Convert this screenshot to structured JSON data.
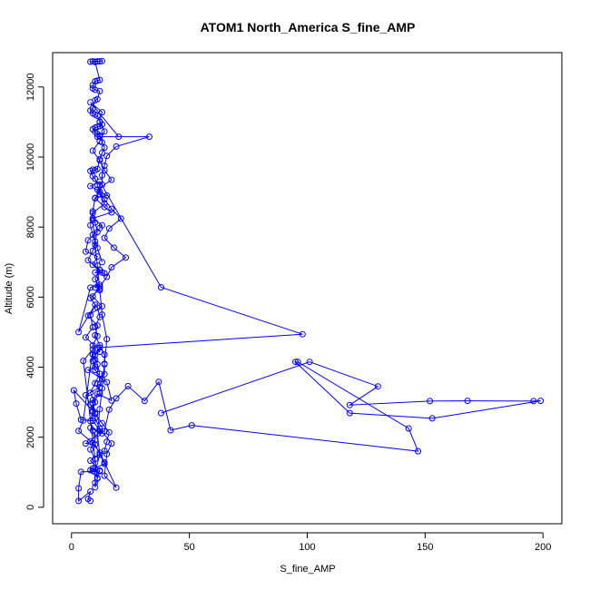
{
  "chart_data": {
    "type": "line",
    "title": "ATOM1 North_America S_fine_AMP",
    "xlabel": "S_fine_AMP",
    "ylabel": "Altitude (m)",
    "xlim": [
      -8,
      208
    ],
    "ylim": [
      -470,
      12980
    ],
    "x_ticks": [
      0,
      50,
      100,
      150,
      200
    ],
    "y_ticks": [
      0,
      2000,
      4000,
      6000,
      8000,
      10000,
      12000
    ],
    "x_tick_labels": [
      "0",
      "50",
      "100",
      "150",
      "200"
    ],
    "y_tick_labels": [
      "0",
      "2000",
      "4000",
      "6000",
      "8000",
      "10000",
      "12000"
    ],
    "series_color": "#0000ff",
    "marker": "open-circle",
    "grid": false,
    "series": [
      {
        "x": [
          8,
          7,
          8,
          3,
          3,
          4,
          12,
          9,
          8,
          14,
          10,
          6,
          8,
          12,
          8,
          13,
          9,
          4,
          2,
          1,
          9,
          9,
          11,
          17,
          15,
          7,
          10,
          10,
          9,
          12,
          11,
          6,
          9,
          8,
          10,
          3,
          8,
          12,
          10,
          12,
          10,
          14,
          13,
          9,
          11,
          6,
          7,
          12,
          13,
          9,
          17,
          14,
          10,
          15,
          8,
          12,
          38,
          98,
          12,
          9,
          10,
          13,
          12,
          6,
          8,
          10,
          13,
          16,
          15,
          14,
          8,
          12,
          11,
          5,
          9,
          5,
          3,
          9,
          12,
          14,
          19,
          14,
          15,
          17,
          12,
          10,
          10,
          9,
          12,
          11,
          14,
          14,
          14,
          12,
          10,
          11,
          7,
          13,
          9,
          12,
          15,
          17,
          23,
          18,
          14,
          16,
          21,
          17,
          14,
          11,
          17,
          14,
          12,
          9,
          12,
          14,
          12,
          13,
          8,
          20,
          11,
          12,
          33,
          19,
          15,
          14,
          13,
          13,
          12,
          14,
          9,
          10,
          11,
          10,
          9,
          7,
          12,
          10,
          12,
          8,
          11,
          12,
          10,
          11,
          9,
          10,
          11,
          12,
          10,
          8,
          10,
          9,
          8,
          9,
          10,
          8,
          10,
          9,
          11,
          10,
          10,
          10,
          12,
          11,
          12,
          13,
          14,
          15,
          13,
          12,
          11,
          10,
          9
        ],
        "y": [
          180,
          240,
          450,
          180,
          540,
          1010,
          1030,
          1040,
          1060,
          1240,
          1790,
          1820,
          1880,
          2170,
          2270,
          2110,
          2470,
          2500,
          2960,
          3340,
          2750,
          3060,
          3240,
          3050,
          3570,
          3920,
          4010,
          4210,
          4360,
          4440,
          4540,
          4850,
          5140,
          5490,
          5780,
          5000,
          6270,
          6350,
          6270,
          6770,
          6700,
          6680,
          6700,
          6920,
          7160,
          7300,
          7620,
          7970,
          8050,
          8250,
          8420,
          8570,
          8830,
          8900,
          9170,
          9300,
          6280,
          4940,
          4560,
          4180,
          3920,
          3660,
          3430,
          3200,
          2930,
          2660,
          2400,
          2140,
          1870,
          1610,
          1330,
          1050,
          820,
          4180,
          4510,
          2480,
          2180,
          1830,
          1560,
          1280,
          560,
          900,
          1520,
          1820,
          2240,
          2550,
          2700,
          2980,
          3250,
          3530,
          3800,
          4080,
          4360,
          4630,
          4910,
          5190,
          5470,
          5740,
          6020,
          6300,
          6580,
          6850,
          7130,
          7410,
          7690,
          7960,
          8240,
          8520,
          8790,
          9070,
          9350,
          9620,
          9900,
          10180,
          10450,
          10730,
          11010,
          11280,
          11560,
          10580,
          10580,
          10580,
          10580,
          10300,
          10030,
          9750,
          9480,
          9210,
          8940,
          8670,
          8400,
          8130,
          7860,
          7590,
          7320,
          7050,
          6780,
          6510,
          6240,
          5970,
          5700,
          5430,
          5160,
          4890,
          4620,
          4350,
          4080,
          3810,
          3540,
          3270,
          3000,
          2730,
          2460,
          2190,
          1920,
          1650,
          1380,
          1110,
          840,
          570,
          700,
          1000,
          1500,
          2100,
          2800,
          3400,
          4100,
          4800,
          5500,
          6200,
          6900,
          7500,
          8200
        ]
      },
      {
        "x": [
          38,
          101,
          130,
          118,
          152,
          168,
          196,
          199,
          153,
          118,
          95,
          96,
          143,
          147,
          51,
          42,
          37,
          31,
          24,
          19,
          16,
          14
        ],
        "y": [
          2690,
          4150,
          3450,
          2920,
          3030,
          3040,
          3030,
          3040,
          2540,
          2690,
          4150,
          4150,
          2250,
          1600,
          2340,
          2200,
          3580,
          3040,
          3460,
          3110,
          2790,
          2170
        ]
      },
      {
        "x": [
          10,
          11,
          12,
          13,
          9,
          8,
          10,
          12,
          11,
          10,
          9,
          9,
          10,
          12,
          11,
          10,
          9,
          8,
          9,
          10,
          11,
          12,
          13,
          12,
          11,
          10,
          9,
          10,
          11,
          12,
          13,
          14,
          13,
          12,
          11,
          10,
          9,
          8,
          9,
          10,
          11,
          12,
          10,
          9,
          8,
          9,
          11,
          13
        ],
        "y": [
          12720,
          12730,
          12730,
          12740,
          12730,
          12720,
          12710,
          12200,
          12180,
          12160,
          12050,
          11960,
          11920,
          11880,
          11650,
          11620,
          11390,
          11330,
          11250,
          11210,
          11180,
          11000,
          10930,
          10880,
          10860,
          10840,
          10790,
          10720,
          10660,
          10610,
          10420,
          10270,
          10120,
          9940,
          9660,
          9620,
          9640,
          9600,
          9450,
          9380,
          9200,
          9010,
          8820,
          8450,
          8050,
          7780,
          7400,
          7000
        ]
      }
    ]
  }
}
